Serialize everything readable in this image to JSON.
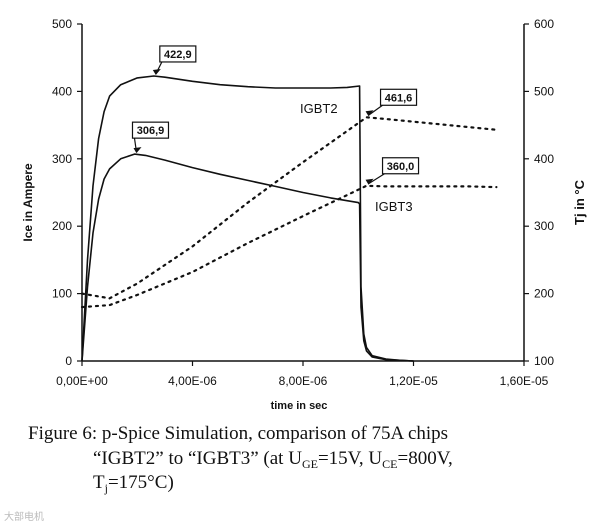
{
  "chart_data": {
    "type": "line",
    "xlabel": "time in sec",
    "ylabel_left": "Ice in Ampere",
    "ylabel_right": "Tj in °C",
    "x_ticks": [
      "0,00E+00",
      "4,00E-06",
      "8,00E-06",
      "1,20E-05",
      "1,60E-05"
    ],
    "y_ticks_left": [
      "0",
      "100",
      "200",
      "300",
      "400",
      "500"
    ],
    "y_ticks_right": [
      "100",
      "200",
      "300",
      "400",
      "500",
      "600"
    ],
    "xlim": [
      0,
      1.6e-05
    ],
    "ylim_left": [
      0,
      500
    ],
    "ylim_right": [
      100,
      600
    ],
    "grid": false,
    "series": [
      {
        "name": "IGBT2",
        "axis": "left",
        "style": "solid",
        "x": [
          0,
          2e-07,
          4e-07,
          6e-07,
          8e-07,
          1e-06,
          1.4e-06,
          2e-06,
          2.6e-06,
          3e-06,
          4e-06,
          5e-06,
          6e-06,
          7e-06,
          8e-06,
          9e-06,
          9.6e-06,
          1.005e-05,
          1.01e-05,
          1.02e-05,
          1.03e-05,
          1.05e-05,
          1.1e-05,
          1.15e-05,
          1.2e-05
        ],
        "y": [
          0,
          150,
          260,
          330,
          370,
          393,
          410,
          420,
          422.9,
          421,
          415,
          410,
          407,
          405,
          405,
          405,
          406,
          408,
          110,
          40,
          20,
          8,
          3,
          1,
          0
        ]
      },
      {
        "name": "IGBT3",
        "axis": "left",
        "style": "solid",
        "x": [
          0,
          2e-07,
          4e-07,
          6e-07,
          8e-07,
          1e-06,
          1.4e-06,
          1.9e-06,
          2.3e-06,
          3e-06,
          4e-06,
          5e-06,
          6e-06,
          7e-06,
          8e-06,
          9e-06,
          1e-05,
          1.005e-05,
          1.01e-05,
          1.02e-05,
          1.03e-05,
          1.05e-05,
          1.1e-05,
          1.15e-05,
          1.2e-05
        ],
        "y": [
          0,
          110,
          190,
          240,
          270,
          285,
          300,
          306.9,
          305,
          298,
          287,
          277,
          268,
          259,
          250,
          242,
          235,
          233,
          80,
          30,
          15,
          6,
          2,
          1,
          0
        ]
      },
      {
        "name": "Tj IGBT2",
        "axis": "right",
        "style": "dotted",
        "x": [
          0,
          1e-06,
          2e-06,
          4e-06,
          6e-06,
          8e-06,
          1.03e-05,
          1.1e-05,
          1.2e-05,
          1.3e-05,
          1.4e-05,
          1.5e-05
        ],
        "y": [
          200,
          193,
          215,
          270,
          335,
          395,
          461.6,
          459,
          455,
          451,
          447,
          443
        ]
      },
      {
        "name": "Tj IGBT3",
        "axis": "right",
        "style": "dotted",
        "x": [
          0,
          1e-06,
          2e-06,
          4e-06,
          6e-06,
          8e-06,
          1.03e-05,
          1.1e-05,
          1.2e-05,
          1.3e-05,
          1.4e-05,
          1.5e-05
        ],
        "y": [
          180,
          183,
          198,
          232,
          275,
          315,
          360.0,
          359,
          359,
          359,
          359,
          358
        ]
      }
    ],
    "series_labels": [
      "IGBT2",
      "IGBT3"
    ],
    "annotations": [
      {
        "text": "422,9",
        "x": 2.6e-06,
        "y": 422.9,
        "axis": "left"
      },
      {
        "text": "306,9",
        "x": 1.9e-06,
        "y": 306.9,
        "axis": "left"
      },
      {
        "text": "461,6",
        "x": 1.03e-05,
        "y": 461.6,
        "axis": "right"
      },
      {
        "text": "360,0",
        "x": 1.03e-05,
        "y": 360.0,
        "axis": "right"
      }
    ]
  },
  "caption": {
    "line1": "Figure 6: p-Spice Simulation, comparison of 75A chips",
    "line2_a": "“IGBT2” to “IGBT3” (at U",
    "line2_sub1": "GE",
    "line2_b": "=15V, U",
    "line2_sub2": "CE",
    "line2_c": "=800V,",
    "line3_a": "T",
    "line3_sub": "j",
    "line3_b": "=175°C)"
  },
  "watermark": "大部电机"
}
